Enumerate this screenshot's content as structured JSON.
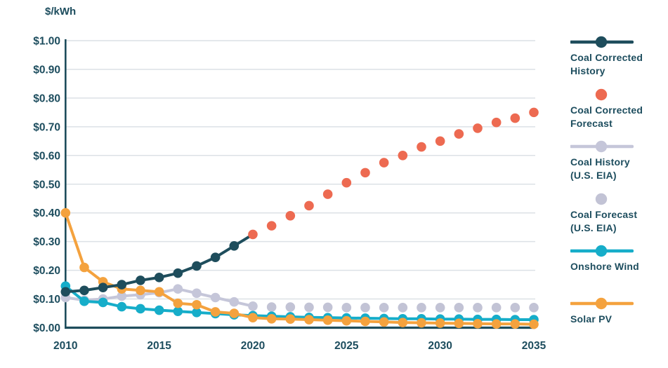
{
  "chart_data": {
    "type": "line",
    "title": "$/kWh",
    "xlabel": "",
    "ylabel": "$/kWh",
    "xlim": [
      2010,
      2035.4
    ],
    "ylim": [
      0,
      1.0
    ],
    "grid": {
      "horizontal": true,
      "color": "#DCE1E6"
    },
    "axis_color": "#1E4D5C",
    "legend_position": "right",
    "x_ticks": {
      "values": [
        2010,
        2015,
        2020,
        2025,
        2030,
        2035
      ],
      "labels": [
        "2010",
        "2015",
        "2020",
        "2025",
        "2030",
        "2035"
      ]
    },
    "y_ticks": {
      "values": [
        1.0,
        0.9,
        0.8,
        0.7,
        0.6,
        0.5,
        0.4,
        0.3,
        0.2,
        0.1,
        0.0
      ],
      "labels": [
        "$1.00",
        "$0.90",
        "$0.80",
        "$0.70",
        "$0.60",
        "$0.50",
        "$0.40",
        "$0.30",
        "$0.20",
        "$0.10",
        "$0.00"
      ]
    },
    "series": [
      {
        "id": "coal-history-eia",
        "name": "Coal History (U.S. EIA)",
        "color": "#C5C6D9",
        "line": true,
        "markers": true,
        "x": [
          2010,
          2011,
          2012,
          2013,
          2014,
          2015,
          2016,
          2017,
          2018,
          2019,
          2020
        ],
        "values": [
          0.105,
          0.096,
          0.1,
          0.11,
          0.115,
          0.122,
          0.135,
          0.12,
          0.105,
          0.09,
          0.075
        ]
      },
      {
        "id": "coal-forecast-eia",
        "name": "Coal Forecast (U.S. EIA)",
        "color": "#C2C3D5",
        "line": false,
        "markers": true,
        "x": [
          2021,
          2022,
          2023,
          2024,
          2025,
          2026,
          2027,
          2028,
          2029,
          2030,
          2031,
          2032,
          2033,
          2034,
          2035
        ],
        "values": [
          0.072,
          0.072,
          0.071,
          0.071,
          0.07,
          0.07,
          0.07,
          0.07,
          0.07,
          0.07,
          0.07,
          0.07,
          0.07,
          0.07,
          0.07
        ]
      },
      {
        "id": "onshore-wind",
        "name": "Onshore Wind",
        "color": "#16ADC9",
        "line": true,
        "markers": true,
        "x": [
          2010,
          2011,
          2012,
          2013,
          2014,
          2015,
          2016,
          2017,
          2018,
          2019,
          2020,
          2021,
          2022,
          2023,
          2024,
          2025,
          2026,
          2027,
          2028,
          2029,
          2030,
          2031,
          2032,
          2033,
          2034,
          2035
        ],
        "values": [
          0.145,
          0.092,
          0.088,
          0.073,
          0.066,
          0.061,
          0.057,
          0.053,
          0.049,
          0.045,
          0.042,
          0.04,
          0.038,
          0.036,
          0.035,
          0.034,
          0.033,
          0.032,
          0.031,
          0.031,
          0.03,
          0.03,
          0.029,
          0.029,
          0.028,
          0.028
        ]
      },
      {
        "id": "solar-pv",
        "name": "Solar PV",
        "color": "#F4A23E",
        "line": true,
        "markers": true,
        "x": [
          2010,
          2011,
          2012,
          2013,
          2014,
          2015,
          2016,
          2017,
          2018,
          2019,
          2020,
          2021,
          2022,
          2023,
          2024,
          2025,
          2026,
          2027,
          2028,
          2029,
          2030,
          2031,
          2032,
          2033,
          2034,
          2035
        ],
        "values": [
          0.4,
          0.21,
          0.16,
          0.135,
          0.13,
          0.125,
          0.085,
          0.08,
          0.055,
          0.05,
          0.035,
          0.031,
          0.03,
          0.028,
          0.026,
          0.024,
          0.022,
          0.02,
          0.018,
          0.017,
          0.016,
          0.015,
          0.014,
          0.013,
          0.013,
          0.012
        ]
      },
      {
        "id": "coal-corrected-history",
        "name": "Coal Corrected History",
        "color": "#1E4D5C",
        "line": true,
        "markers": true,
        "x": [
          2010,
          2011,
          2012,
          2013,
          2014,
          2015,
          2016,
          2017,
          2018,
          2019
        ],
        "values": [
          0.125,
          0.13,
          0.14,
          0.15,
          0.165,
          0.175,
          0.19,
          0.215,
          0.245,
          0.285
        ],
        "line_extension": {
          "x": 2020,
          "value": 0.325
        }
      },
      {
        "id": "coal-corrected-forecast",
        "name": "Coal Corrected Forecast",
        "color": "#ED6A51",
        "line": false,
        "markers": true,
        "x": [
          2020,
          2021,
          2022,
          2023,
          2024,
          2025,
          2026,
          2027,
          2028,
          2029,
          2030,
          2031,
          2032,
          2033,
          2034,
          2035
        ],
        "values": [
          0.325,
          0.355,
          0.39,
          0.425,
          0.465,
          0.505,
          0.54,
          0.575,
          0.6,
          0.63,
          0.65,
          0.675,
          0.695,
          0.715,
          0.73,
          0.75
        ]
      }
    ]
  },
  "legend": {
    "items": [
      {
        "id": "coal-corrected-history",
        "swatch": "line-dot",
        "color": "#1E4D5C",
        "lines": [
          "Coal Corrected",
          "History"
        ]
      },
      {
        "id": "coal-corrected-forecast",
        "swatch": "dot",
        "color": "#ED6A51",
        "lines": [
          "Coal Corrected",
          "Forecast"
        ]
      },
      {
        "id": "coal-history-eia",
        "swatch": "line-dot",
        "color": "#C5C6D9",
        "lines": [
          "Coal History",
          "(U.S. EIA)"
        ]
      },
      {
        "id": "coal-forecast-eia",
        "swatch": "dot",
        "color": "#C2C3D5",
        "lines": [
          "Coal Forecast",
          "(U.S. EIA)"
        ]
      },
      {
        "id": "onshore-wind",
        "swatch": "line-dot",
        "color": "#16ADC9",
        "lines": [
          "Onshore Wind"
        ]
      },
      {
        "id": "solar-pv",
        "swatch": "line-dot",
        "color": "#F4A23E",
        "lines": [
          "Solar PV"
        ]
      }
    ]
  }
}
